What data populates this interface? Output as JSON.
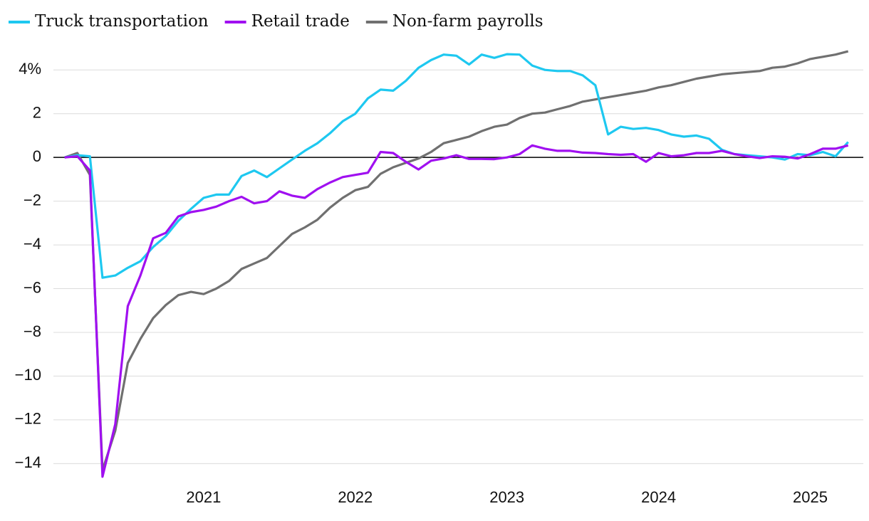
{
  "chart_data": {
    "type": "line",
    "x": [
      2020.083,
      2020.167,
      2020.25,
      2020.333,
      2020.417,
      2020.5,
      2020.583,
      2020.667,
      2020.75,
      2020.833,
      2020.917,
      2021.0,
      2021.083,
      2021.167,
      2021.25,
      2021.333,
      2021.417,
      2021.5,
      2021.583,
      2021.667,
      2021.75,
      2021.833,
      2021.917,
      2022.0,
      2022.083,
      2022.167,
      2022.25,
      2022.333,
      2022.417,
      2022.5,
      2022.583,
      2022.667,
      2022.75,
      2022.833,
      2022.917,
      2023.0,
      2023.083,
      2023.167,
      2023.25,
      2023.333,
      2023.417,
      2023.5,
      2023.583,
      2023.667,
      2023.75,
      2023.833,
      2023.917,
      2024.0,
      2024.083,
      2024.167,
      2024.25,
      2024.333,
      2024.417,
      2024.5,
      2024.583,
      2024.667,
      2024.75,
      2024.833,
      2024.917,
      2025.0,
      2025.083,
      2025.167,
      2025.25
    ],
    "series": [
      {
        "name": "Truck transportation",
        "color": "#1ec8f0",
        "values": [
          0,
          0.1,
          0.05,
          -5.5,
          -5.4,
          -5.05,
          -4.75,
          -4.1,
          -3.6,
          -2.9,
          -2.35,
          -1.85,
          -1.7,
          -1.7,
          -0.85,
          -0.6,
          -0.9,
          -0.5,
          -0.1,
          0.3,
          0.65,
          1.1,
          1.65,
          2.0,
          2.7,
          3.1,
          3.05,
          3.5,
          4.1,
          4.45,
          4.7,
          4.65,
          4.25,
          4.7,
          4.55,
          4.72,
          4.7,
          4.2,
          4.0,
          3.95,
          3.95,
          3.75,
          3.3,
          1.05,
          1.4,
          1.3,
          1.35,
          1.25,
          1.05,
          0.95,
          1.0,
          0.85,
          0.35,
          0.15,
          0.1,
          0.05,
          0.0,
          -0.1,
          0.15,
          0.1,
          0.25,
          0.05,
          0.7
        ]
      },
      {
        "name": "Retail trade",
        "color": "#a010f0",
        "values": [
          0,
          0.05,
          -0.6,
          -14.6,
          -12.2,
          -6.8,
          -5.4,
          -3.7,
          -3.45,
          -2.7,
          -2.5,
          -2.4,
          -2.25,
          -2.0,
          -1.8,
          -2.1,
          -2.0,
          -1.55,
          -1.75,
          -1.85,
          -1.45,
          -1.15,
          -0.9,
          -0.8,
          -0.7,
          0.25,
          0.2,
          -0.2,
          -0.55,
          -0.15,
          -0.05,
          0.1,
          -0.07,
          -0.07,
          -0.08,
          0.0,
          0.15,
          0.55,
          0.4,
          0.3,
          0.3,
          0.22,
          0.2,
          0.15,
          0.12,
          0.15,
          -0.2,
          0.2,
          0.05,
          0.1,
          0.2,
          0.2,
          0.3,
          0.15,
          0.05,
          -0.03,
          0.05,
          0.03,
          -0.05,
          0.15,
          0.4,
          0.4,
          0.55
        ]
      },
      {
        "name": "Non-farm payrolls",
        "color": "#707070",
        "values": [
          0,
          0.2,
          -0.8,
          -14.3,
          -12.5,
          -9.4,
          -8.3,
          -7.35,
          -6.75,
          -6.3,
          -6.15,
          -6.25,
          -6.0,
          -5.65,
          -5.1,
          -4.85,
          -4.6,
          -4.05,
          -3.5,
          -3.2,
          -2.85,
          -2.3,
          -1.85,
          -1.5,
          -1.35,
          -0.75,
          -0.45,
          -0.25,
          -0.05,
          0.25,
          0.65,
          0.8,
          0.95,
          1.2,
          1.4,
          1.5,
          1.8,
          2.0,
          2.05,
          2.2,
          2.35,
          2.55,
          2.65,
          2.75,
          2.85,
          2.95,
          3.05,
          3.2,
          3.3,
          3.45,
          3.6,
          3.7,
          3.8,
          3.85,
          3.9,
          3.95,
          4.1,
          4.15,
          4.3,
          4.5,
          4.6,
          4.7,
          4.85
        ]
      }
    ],
    "xlim": [
      2020,
      2025.35
    ],
    "xticks": [
      2021,
      2022,
      2023,
      2024,
      2025
    ],
    "ylim": [
      -14.9,
      5.7
    ],
    "yticks": [
      {
        "value": 4,
        "label": "4%"
      },
      2,
      0,
      {
        "value": -2,
        "label": "−2"
      },
      {
        "value": -4,
        "label": "−4"
      },
      {
        "value": -6,
        "label": "−6"
      },
      {
        "value": -8,
        "label": "−8"
      },
      {
        "value": -10,
        "label": "−10"
      },
      {
        "value": -12,
        "label": "−12"
      },
      {
        "value": -14,
        "label": "−14"
      }
    ],
    "grid": true,
    "legend": "top"
  }
}
